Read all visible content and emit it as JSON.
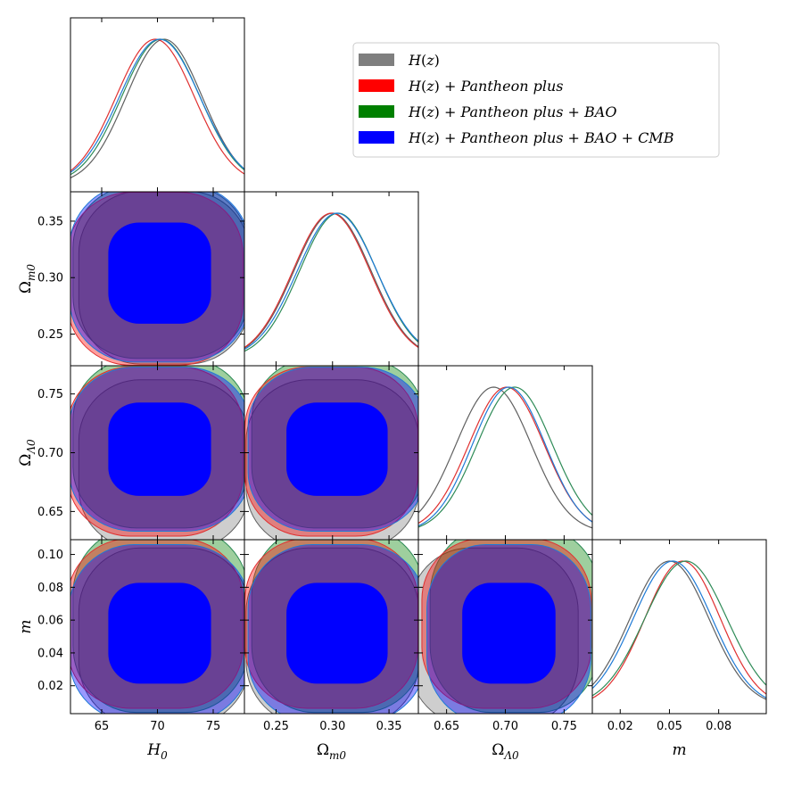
{
  "chart_data": {
    "type": "corner-plot",
    "parameters": [
      {
        "id": "H0",
        "label": "H",
        "sub": "0",
        "range": [
          62.2,
          77.8
        ],
        "ticks": [
          65,
          70,
          75
        ],
        "tick_labels": [
          "65",
          "70",
          "75"
        ]
      },
      {
        "id": "Om",
        "label": "Ω",
        "sub": "m0",
        "range": [
          0.222,
          0.376
        ],
        "ticks": [
          0.25,
          0.3,
          0.35
        ],
        "tick_labels": [
          "0.25",
          "0.30",
          "0.35"
        ]
      },
      {
        "id": "OL",
        "label": "Ω",
        "sub": "Λ0",
        "range": [
          0.626,
          0.774
        ],
        "ticks": [
          0.65,
          0.7,
          0.75
        ],
        "tick_labels": [
          "0.65",
          "0.70",
          "0.75"
        ]
      },
      {
        "id": "m",
        "label": "m",
        "sub": "",
        "range": [
          0.003,
          0.109
        ],
        "ticks": [
          0.02,
          0.05,
          0.08
        ],
        "tick_labels": [
          "0.02",
          "0.05",
          "0.08"
        ]
      }
    ],
    "y_axis_ticks": {
      "Om": {
        "ticks": [
          0.25,
          0.3,
          0.35
        ],
        "labels": [
          "0.25",
          "0.30",
          "0.35"
        ]
      },
      "OL": {
        "ticks": [
          0.65,
          0.7,
          0.75
        ],
        "labels": [
          "0.65",
          "0.70",
          "0.75"
        ]
      },
      "m": {
        "ticks": [
          0.02,
          0.04,
          0.06,
          0.08,
          0.1
        ],
        "labels": [
          "0.02",
          "0.04",
          "0.06",
          "0.08",
          "0.10"
        ]
      }
    },
    "series": [
      {
        "name": "H(z)",
        "color": "#7f7f7f",
        "stroke": "#606060",
        "mean": {
          "H0": 70.6,
          "Om": 0.3,
          "OL": 0.69,
          "m": 0.05
        },
        "sigma": {
          "H0": 3.4,
          "Om": 0.034,
          "OL": 0.032,
          "m": 0.024
        }
      },
      {
        "name": "H(z) + Pantheon plus",
        "color": "#ff0000",
        "stroke": "#e03030",
        "mean": {
          "H0": 69.8,
          "Om": 0.299,
          "OL": 0.701,
          "m": 0.058
        },
        "sigma": {
          "H0": 3.5,
          "Om": 0.034,
          "OL": 0.032,
          "m": 0.023
        }
      },
      {
        "name": "H(z) + Pantheon plus + BAO",
        "color": "#008000",
        "stroke": "#2e8b57",
        "mean": {
          "H0": 70.3,
          "Om": 0.305,
          "OL": 0.708,
          "m": 0.06
        },
        "sigma": {
          "H0": 3.5,
          "Om": 0.034,
          "OL": 0.032,
          "m": 0.025
        }
      },
      {
        "name": "H(z) + Pantheon plus + BAO + CMB",
        "color": "#0000ff",
        "stroke": "#1e7ad6",
        "mean": {
          "H0": 70.2,
          "Om": 0.304,
          "OL": 0.703,
          "m": 0.052
        },
        "sigma": {
          "H0": 3.6,
          "Om": 0.035,
          "OL": 0.031,
          "m": 0.024
        }
      }
    ],
    "legend": {
      "placement": "top-right",
      "entries": [
        {
          "plain": "H(z)",
          "parts": [
            [
              "H",
              "i"
            ],
            [
              "(",
              "n"
            ],
            [
              "z",
              "i"
            ],
            [
              ")",
              "n"
            ]
          ]
        },
        {
          "plain": "H(z) + Pantheon plus",
          "parts": [
            [
              "H",
              "i"
            ],
            [
              "(",
              "n"
            ],
            [
              "z",
              "i"
            ],
            [
              ")",
              "n"
            ],
            [
              " + ",
              "n"
            ],
            [
              "Pantheon plus",
              "i"
            ]
          ]
        },
        {
          "plain": "H(z) + Pantheon plus + BAO",
          "parts": [
            [
              "H",
              "i"
            ],
            [
              "(",
              "n"
            ],
            [
              "z",
              "i"
            ],
            [
              ")",
              "n"
            ],
            [
              " + ",
              "n"
            ],
            [
              "Pantheon plus",
              "i"
            ],
            [
              " + ",
              "n"
            ],
            [
              "BAO",
              "i"
            ]
          ]
        },
        {
          "plain": "H(z) + Pantheon plus + BAO + CMB",
          "parts": [
            [
              "H",
              "i"
            ],
            [
              "(",
              "n"
            ],
            [
              "z",
              "i"
            ],
            [
              ")",
              "n"
            ],
            [
              " + ",
              "n"
            ],
            [
              "Pantheon plus",
              "i"
            ],
            [
              " + ",
              "n"
            ],
            [
              "BAO",
              "i"
            ],
            [
              " + ",
              "n"
            ],
            [
              "CMB",
              "i"
            ]
          ]
        }
      ]
    },
    "contours": "68% and 95% filled credible regions for the combined H(z) + Pantheon plus + BAO + CMB series; 95% regions for the others"
  }
}
